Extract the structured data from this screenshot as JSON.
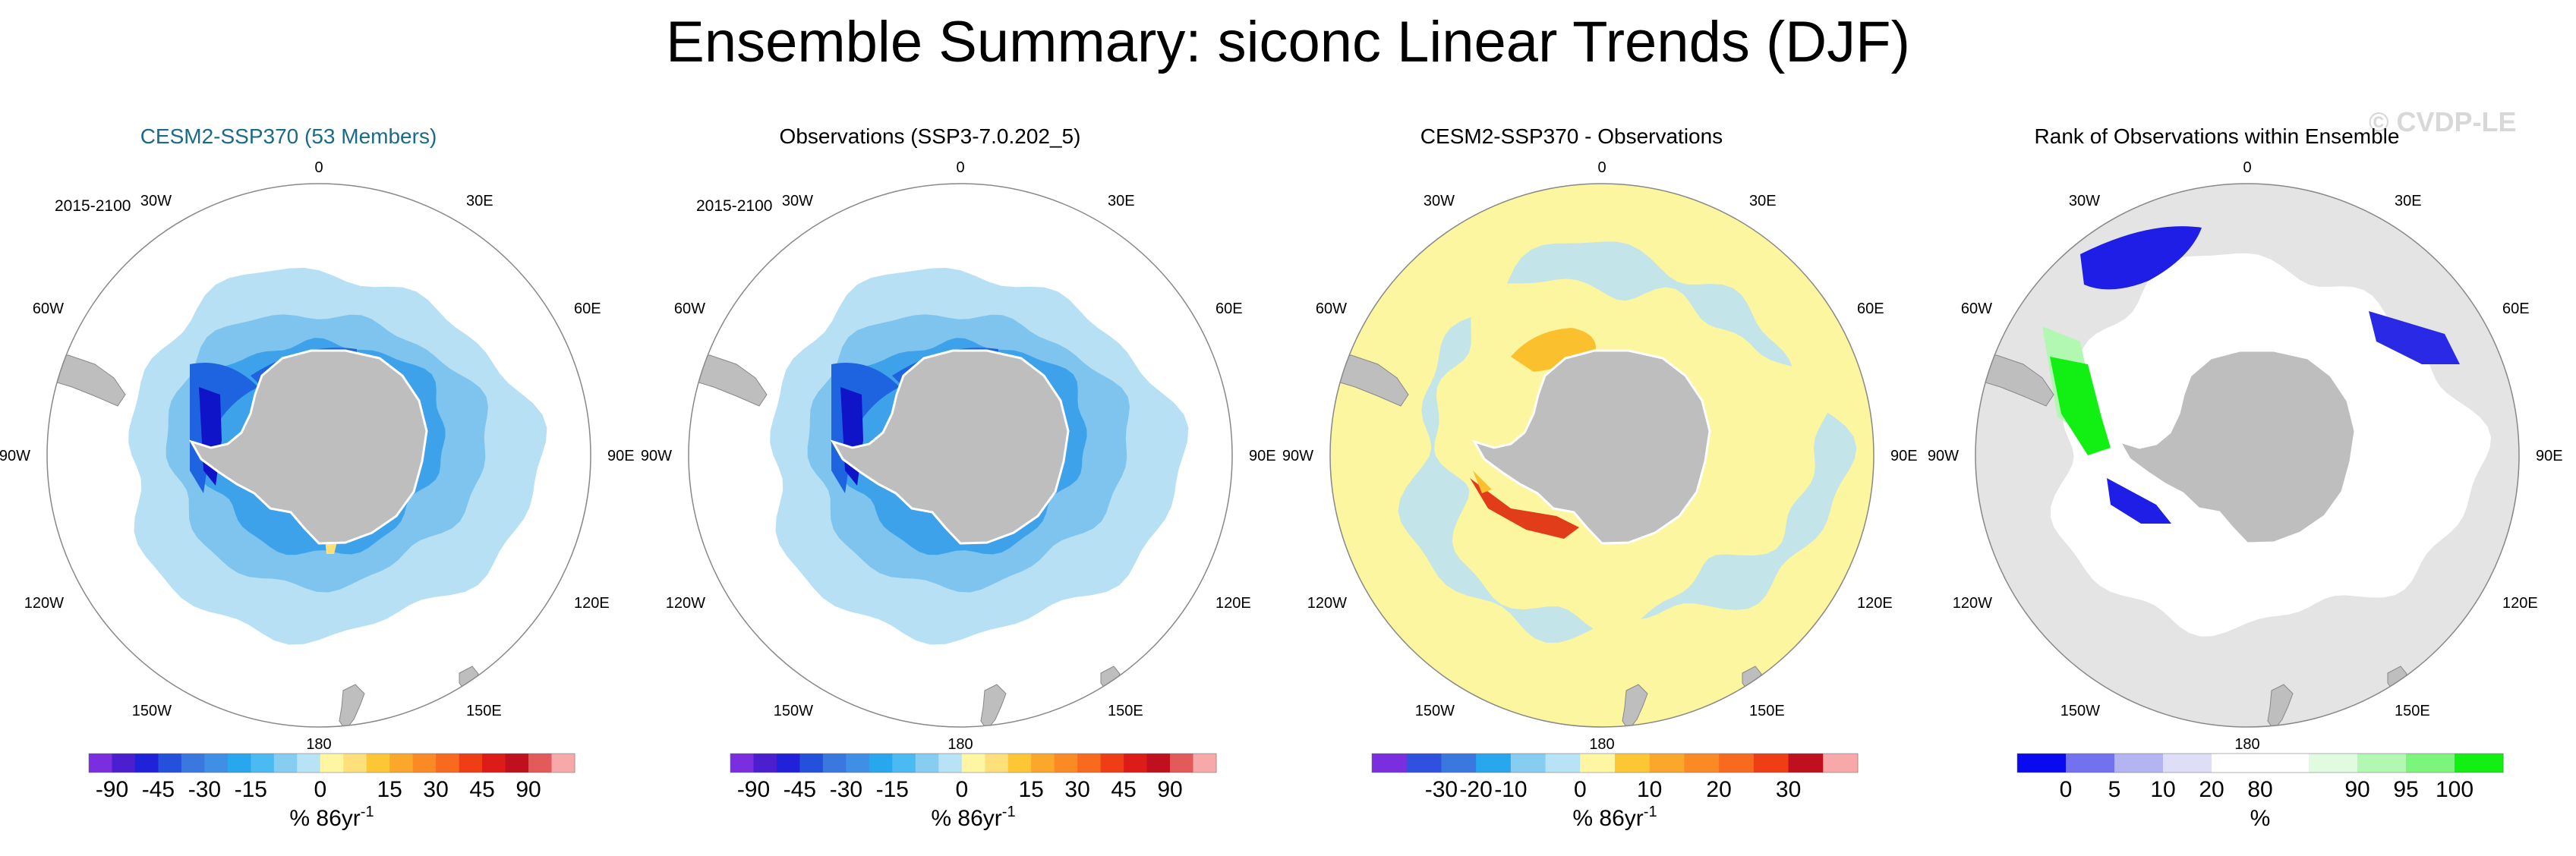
{
  "title": "Ensemble Summary: siconc Linear Trends (DJF)",
  "watermark": "© CVDP-LE",
  "colors": {
    "land": "#bebebe",
    "coast": "#ffffff",
    "title_accent": "#1a6a8a",
    "light_blue": "#b8e0f4",
    "mid_blue": "#7ec4ee",
    "blue": "#3ea2ea",
    "deep_blue": "#1e64e0",
    "navy": "#0f14c8",
    "yellow_bg": "#fdf6a0",
    "orange": "#fbc02d",
    "red": "#e23d1b"
  },
  "lon_labels": [
    "0",
    "30E",
    "60E",
    "90E",
    "120E",
    "150E",
    "180",
    "150W",
    "120W",
    "90W",
    "60W",
    "30W"
  ],
  "panels": [
    {
      "title": "CESM2-SSP370 (53 Members)",
      "title_color": "#1a6a8a",
      "period": "2015-2100",
      "map": "model",
      "colorbar": {
        "colors": [
          "#7b2ee0",
          "#4b1fd0",
          "#1f22d8",
          "#2450dc",
          "#3a78e0",
          "#3f8fe6",
          "#28a6ee",
          "#4cbaf2",
          "#86cdf1",
          "#b8e2f5",
          "#fef6a3",
          "#fee07a",
          "#fcc635",
          "#fba72c",
          "#fb8a24",
          "#f86a1e",
          "#ef3d16",
          "#dd1c1a",
          "#c00f1e",
          "#e25a5a",
          "#f7a8a8"
        ],
        "ticks": [
          "-90",
          "-45",
          "-30",
          "-15",
          "0",
          "15",
          "30",
          "45",
          "90"
        ],
        "label": "% 86yr",
        "label_sup": "-1"
      }
    },
    {
      "title": "Observations (SSP3-7.0.202_5)",
      "title_color": "#000000",
      "period": "2015-2100",
      "map": "obs",
      "colorbar": {
        "colors": [
          "#7b2ee0",
          "#4b1fd0",
          "#1f22d8",
          "#2450dc",
          "#3a78e0",
          "#3f8fe6",
          "#28a6ee",
          "#4cbaf2",
          "#86cdf1",
          "#b8e2f5",
          "#fef6a3",
          "#fee07a",
          "#fcc635",
          "#fba72c",
          "#fb8a24",
          "#f86a1e",
          "#ef3d16",
          "#dd1c1a",
          "#c00f1e",
          "#e25a5a",
          "#f7a8a8"
        ],
        "ticks": [
          "-90",
          "-45",
          "-30",
          "-15",
          "0",
          "15",
          "30",
          "45",
          "90"
        ],
        "label": "% 86yr",
        "label_sup": "-1"
      }
    },
    {
      "title": "CESM2-SSP370 - Observations",
      "title_color": "#000000",
      "period": "",
      "map": "diff",
      "colorbar": {
        "colors": [
          "#7b2ee0",
          "#3050e0",
          "#3a78e0",
          "#28a6ee",
          "#86cdf1",
          "#b8e2f5",
          "#fef6a3",
          "#fcc635",
          "#fba72c",
          "#fb8a24",
          "#f86a1e",
          "#ef3d16",
          "#c00f1e",
          "#f7a8a8"
        ],
        "ticks": [
          "-30",
          "-20",
          "-10",
          "0",
          "10",
          "20",
          "30"
        ],
        "label": "% 86yr",
        "label_sup": "-1"
      }
    },
    {
      "title": "Rank of Observations within Ensemble",
      "title_color": "#000000",
      "period": "",
      "map": "rank",
      "colorbar": {
        "colors": [
          "#0a0af0",
          "#7272f0",
          "#b4b4f2",
          "#dedef7",
          "#ffffff",
          "#ffffff",
          "#e0fbe0",
          "#b2f7b2",
          "#7cf57c",
          "#12ef12"
        ],
        "ticks": [
          "0",
          "5",
          "10",
          "20",
          "80",
          "90",
          "95",
          "100"
        ],
        "label": "%",
        "label_sup": ""
      }
    }
  ]
}
